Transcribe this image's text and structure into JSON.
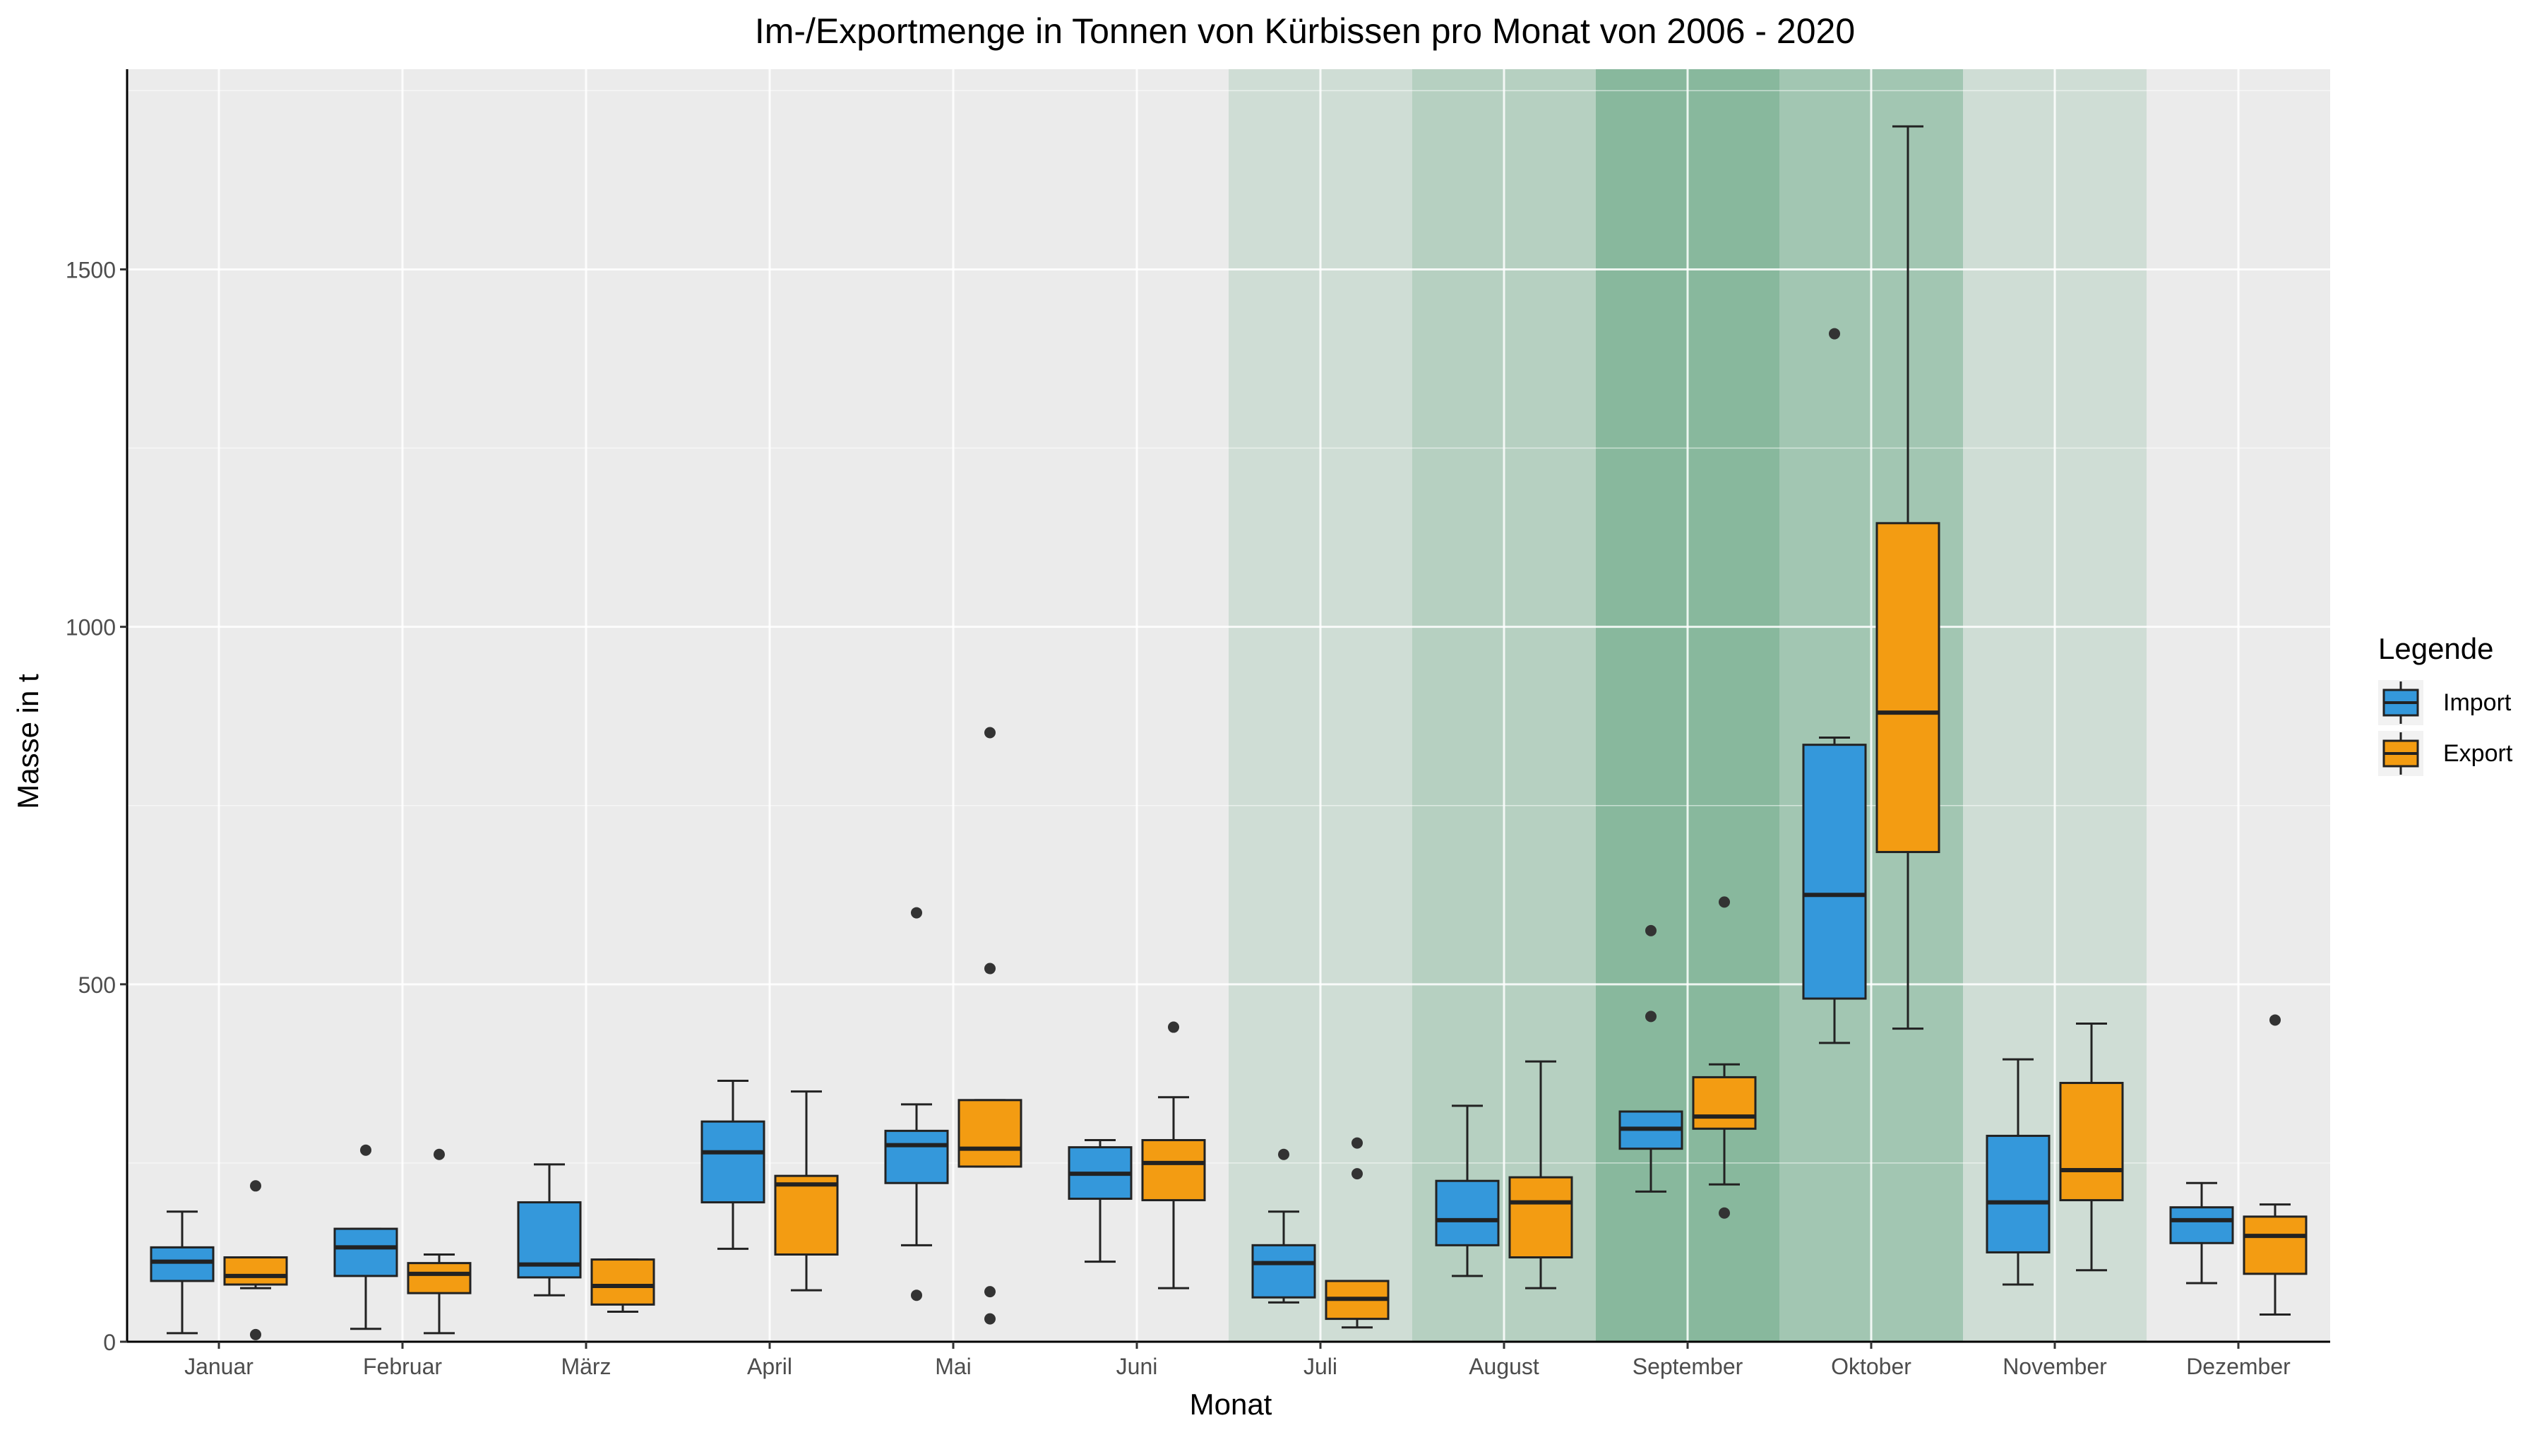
{
  "chart_data": {
    "type": "boxplot",
    "title": "Im-/Exportmenge in Tonnen von Kürbissen pro Monat von 2006 - 2020",
    "xlabel": "Monat",
    "ylabel": "Masse in t",
    "ylim": [
      0,
      1780
    ],
    "yticks": [
      0,
      500,
      1000,
      1500
    ],
    "grid": true,
    "legend": {
      "title": "Legende",
      "position": "right",
      "items": [
        {
          "label": "Import",
          "color": "#3498db"
        },
        {
          "label": "Export",
          "color": "#f39c12"
        }
      ]
    },
    "categories": [
      "Januar",
      "Februar",
      "März",
      "April",
      "Mai",
      "Juni",
      "Juli",
      "August",
      "September",
      "Oktober",
      "November",
      "Dezember"
    ],
    "highlight": {
      "color": "#2e8b57",
      "opacity": [
        0,
        0,
        0,
        0,
        0,
        0,
        0.15,
        0.28,
        0.52,
        0.38,
        0.15,
        0
      ]
    },
    "series": [
      {
        "name": "Import",
        "color": "#3498db",
        "boxes": [
          {
            "min": 12,
            "q1": 85,
            "median": 112,
            "q3": 132,
            "max": 182,
            "outliers": []
          },
          {
            "min": 18,
            "q1": 92,
            "median": 132,
            "q3": 158,
            "max": 158,
            "outliers": [
              268
            ]
          },
          {
            "min": 65,
            "q1": 90,
            "median": 108,
            "q3": 195,
            "max": 248,
            "outliers": []
          },
          {
            "min": 130,
            "q1": 195,
            "median": 265,
            "q3": 308,
            "max": 365,
            "outliers": []
          },
          {
            "min": 135,
            "q1": 222,
            "median": 275,
            "q3": 295,
            "max": 332,
            "outliers": [
              600,
              65
            ]
          },
          {
            "min": 112,
            "q1": 200,
            "median": 235,
            "q3": 272,
            "max": 282,
            "outliers": []
          },
          {
            "min": 55,
            "q1": 62,
            "median": 110,
            "q3": 135,
            "max": 182,
            "outliers": [
              262
            ]
          },
          {
            "min": 92,
            "q1": 135,
            "median": 170,
            "q3": 225,
            "max": 330,
            "outliers": []
          },
          {
            "min": 210,
            "q1": 270,
            "median": 298,
            "q3": 322,
            "max": 322,
            "outliers": [
              575,
              455
            ]
          },
          {
            "min": 418,
            "q1": 480,
            "median": 625,
            "q3": 835,
            "max": 845,
            "outliers": [
              1410
            ]
          },
          {
            "min": 80,
            "q1": 125,
            "median": 195,
            "q3": 288,
            "max": 395,
            "outliers": []
          },
          {
            "min": 82,
            "q1": 138,
            "median": 170,
            "q3": 188,
            "max": 222,
            "outliers": []
          }
        ]
      },
      {
        "name": "Export",
        "color": "#f39c12",
        "boxes": [
          {
            "min": 75,
            "q1": 80,
            "median": 92,
            "q3": 118,
            "max": 118,
            "outliers": [
              218,
              10
            ]
          },
          {
            "min": 12,
            "q1": 68,
            "median": 95,
            "q3": 110,
            "max": 122,
            "outliers": [
              262
            ]
          },
          {
            "min": 42,
            "q1": 52,
            "median": 78,
            "q3": 115,
            "max": 115,
            "outliers": []
          },
          {
            "min": 72,
            "q1": 122,
            "median": 220,
            "q3": 232,
            "max": 350,
            "outliers": []
          },
          {
            "min": 245,
            "q1": 245,
            "median": 270,
            "q3": 338,
            "max": 338,
            "outliers": [
              852,
              522,
              70,
              32
            ]
          },
          {
            "min": 75,
            "q1": 198,
            "median": 250,
            "q3": 282,
            "max": 342,
            "outliers": [
              440
            ]
          },
          {
            "min": 20,
            "q1": 32,
            "median": 60,
            "q3": 85,
            "max": 85,
            "outliers": [
              278,
              235
            ]
          },
          {
            "min": 75,
            "q1": 118,
            "median": 195,
            "q3": 230,
            "max": 392,
            "outliers": []
          },
          {
            "min": 220,
            "q1": 298,
            "median": 315,
            "q3": 370,
            "max": 388,
            "outliers": [
              615,
              180
            ]
          },
          {
            "min": 438,
            "q1": 685,
            "median": 880,
            "q3": 1145,
            "max": 1700,
            "outliers": []
          },
          {
            "min": 100,
            "q1": 198,
            "median": 240,
            "q3": 362,
            "max": 445,
            "outliers": []
          },
          {
            "min": 38,
            "q1": 95,
            "median": 148,
            "q3": 175,
            "max": 192,
            "outliers": [
              450
            ]
          }
        ]
      }
    ]
  }
}
